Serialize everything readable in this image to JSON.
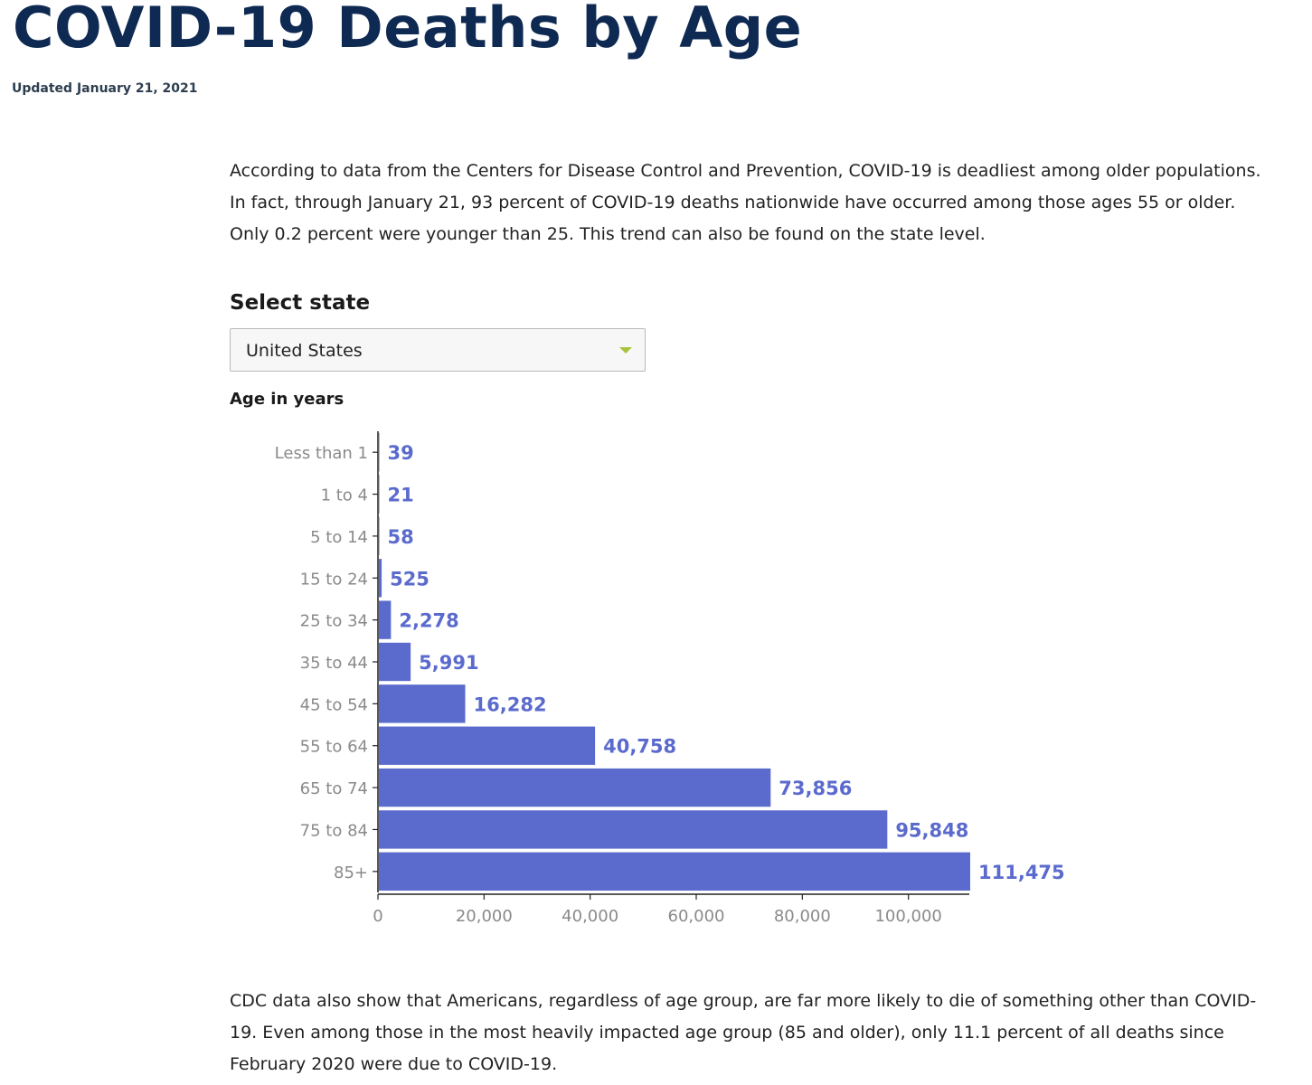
{
  "page": {
    "title": "COVID-19 Deaths by Age",
    "updated": "Updated January 21, 2021",
    "intro": "According to data from the Centers for Disease Control and Prevention, COVID-19 is deadliest among older populations. In fact, through January 21, 93 percent of COVID-19 deaths nationwide have occurred among those ages 55 or older. Only 0.2 percent were younger than 25. This trend can also be found on the state level.",
    "select_label": "Select state",
    "select_value": "United States",
    "outro": "CDC data also show that Americans, regardless of age group, are far more likely to die of something other than COVID-19. Even among those in the most heavily impacted age group (85 and older), only 11.1 percent of all deaths since February 2020 were due to COVID-19."
  },
  "colors": {
    "bar": "#5b6bcd",
    "title": "#0f2a52",
    "select_arrow": "#a7c43a"
  },
  "chart_data": {
    "type": "bar",
    "orientation": "horizontal",
    "title": "",
    "ylabel": "Age in years",
    "xlabel": "",
    "categories": [
      "Less than 1",
      "1 to 4",
      "5 to 14",
      "15 to 24",
      "25 to 34",
      "35 to 44",
      "45 to 54",
      "55 to 64",
      "65 to 74",
      "75 to 84",
      "85+"
    ],
    "values": [
      39,
      21,
      58,
      525,
      2278,
      5991,
      16282,
      40758,
      73856,
      95848,
      111475
    ],
    "value_labels": [
      "39",
      "21",
      "58",
      "525",
      "2,278",
      "5,991",
      "16,282",
      "40,758",
      "73,856",
      "95,848",
      "111,475"
    ],
    "xlim": [
      0,
      111475
    ],
    "xticks": [
      0,
      20000,
      40000,
      60000,
      80000,
      100000
    ],
    "xtick_labels": [
      "0",
      "20,000",
      "40,000",
      "60,000",
      "80,000",
      "100,000"
    ],
    "grid": false,
    "legend": "none"
  }
}
